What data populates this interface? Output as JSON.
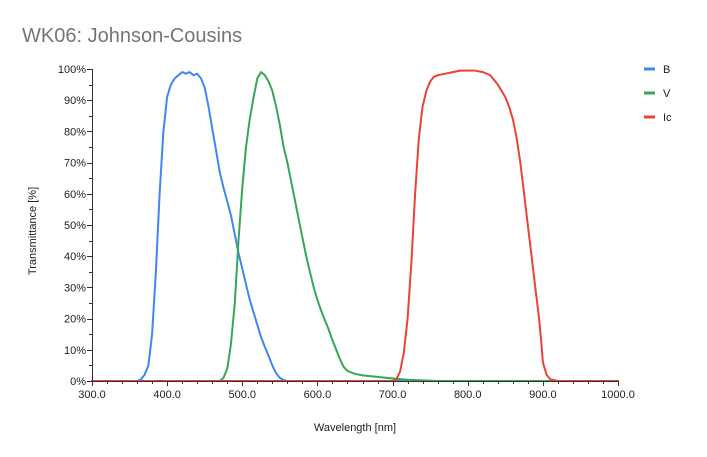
{
  "chart_data": {
    "type": "line",
    "title": "WK06: Johnson-Cousins",
    "xlabel": "Wavelength [nm]",
    "ylabel": "Transmittance [%]",
    "xlim": [
      300,
      1000
    ],
    "ylim": [
      0,
      100
    ],
    "x_ticks": [
      300,
      400,
      500,
      600,
      700,
      800,
      900,
      1000
    ],
    "x_tick_labels": [
      "300.0",
      "400.0",
      "500.0",
      "600.0",
      "700.0",
      "800.0",
      "900.0",
      "1000.0"
    ],
    "y_ticks": [
      0,
      10,
      20,
      30,
      40,
      50,
      60,
      70,
      80,
      90,
      100
    ],
    "y_tick_labels": [
      "0%",
      "10%",
      "20%",
      "30%",
      "40%",
      "50%",
      "60%",
      "70%",
      "80%",
      "90%",
      "100%"
    ],
    "grid": false,
    "legend_position": "top-right",
    "series": [
      {
        "name": "B",
        "color": "#4285f4",
        "points": [
          [
            300,
            0
          ],
          [
            360,
            0
          ],
          [
            365,
            0.5
          ],
          [
            370,
            2
          ],
          [
            375,
            5
          ],
          [
            380,
            15
          ],
          [
            385,
            35
          ],
          [
            390,
            60
          ],
          [
            395,
            80
          ],
          [
            400,
            91
          ],
          [
            405,
            95
          ],
          [
            410,
            97
          ],
          [
            415,
            98
          ],
          [
            420,
            99
          ],
          [
            425,
            98.5
          ],
          [
            430,
            99
          ],
          [
            435,
            98
          ],
          [
            440,
            98.5
          ],
          [
            445,
            97
          ],
          [
            450,
            94
          ],
          [
            455,
            88
          ],
          [
            460,
            81
          ],
          [
            465,
            74
          ],
          [
            470,
            67
          ],
          [
            475,
            62
          ],
          [
            480,
            57.5
          ],
          [
            485,
            53
          ],
          [
            490,
            47
          ],
          [
            495,
            41
          ],
          [
            500,
            36
          ],
          [
            505,
            31
          ],
          [
            510,
            26
          ],
          [
            515,
            22
          ],
          [
            520,
            18
          ],
          [
            525,
            14
          ],
          [
            530,
            11
          ],
          [
            535,
            8
          ],
          [
            540,
            5
          ],
          [
            545,
            2.5
          ],
          [
            550,
            1
          ],
          [
            555,
            0.3
          ],
          [
            560,
            0
          ],
          [
            1000,
            0
          ]
        ]
      },
      {
        "name": "V",
        "color": "#34a853",
        "points": [
          [
            300,
            0
          ],
          [
            470,
            0
          ],
          [
            475,
            1
          ],
          [
            480,
            4
          ],
          [
            485,
            12
          ],
          [
            490,
            25
          ],
          [
            495,
            45
          ],
          [
            500,
            62
          ],
          [
            505,
            75
          ],
          [
            510,
            84
          ],
          [
            515,
            91
          ],
          [
            520,
            97
          ],
          [
            525,
            99
          ],
          [
            530,
            98
          ],
          [
            535,
            96
          ],
          [
            540,
            93
          ],
          [
            545,
            88
          ],
          [
            550,
            82
          ],
          [
            555,
            75
          ],
          [
            560,
            70
          ],
          [
            565,
            64
          ],
          [
            570,
            58
          ],
          [
            575,
            52
          ],
          [
            580,
            46
          ],
          [
            585,
            40
          ],
          [
            590,
            35
          ],
          [
            595,
            30
          ],
          [
            600,
            26
          ],
          [
            605,
            22.5
          ],
          [
            610,
            19.5
          ],
          [
            615,
            16.5
          ],
          [
            620,
            13
          ],
          [
            625,
            10
          ],
          [
            630,
            7
          ],
          [
            635,
            4.5
          ],
          [
            640,
            3.2
          ],
          [
            650,
            2.3
          ],
          [
            660,
            1.8
          ],
          [
            680,
            1.3
          ],
          [
            700,
            0.8
          ],
          [
            720,
            0.4
          ],
          [
            740,
            0.2
          ],
          [
            760,
            0
          ],
          [
            1000,
            0
          ]
        ]
      },
      {
        "name": "Ic",
        "color": "#ea4335",
        "points": [
          [
            300,
            0
          ],
          [
            700,
            0
          ],
          [
            705,
            0.5
          ],
          [
            710,
            3
          ],
          [
            715,
            9
          ],
          [
            720,
            20
          ],
          [
            725,
            38
          ],
          [
            730,
            60
          ],
          [
            735,
            78
          ],
          [
            740,
            88
          ],
          [
            745,
            93
          ],
          [
            750,
            96
          ],
          [
            755,
            97.5
          ],
          [
            760,
            98
          ],
          [
            770,
            98.5
          ],
          [
            780,
            99
          ],
          [
            790,
            99.5
          ],
          [
            800,
            99.5
          ],
          [
            810,
            99.5
          ],
          [
            820,
            99
          ],
          [
            830,
            98
          ],
          [
            835,
            96.5
          ],
          [
            840,
            95
          ],
          [
            845,
            93
          ],
          [
            850,
            91
          ],
          [
            855,
            88
          ],
          [
            860,
            84
          ],
          [
            865,
            78
          ],
          [
            870,
            70
          ],
          [
            875,
            60
          ],
          [
            880,
            50
          ],
          [
            885,
            40
          ],
          [
            890,
            30
          ],
          [
            895,
            20
          ],
          [
            898,
            12
          ],
          [
            900,
            6
          ],
          [
            905,
            2
          ],
          [
            910,
            0.5
          ],
          [
            920,
            0
          ],
          [
            1000,
            0
          ]
        ]
      }
    ]
  }
}
